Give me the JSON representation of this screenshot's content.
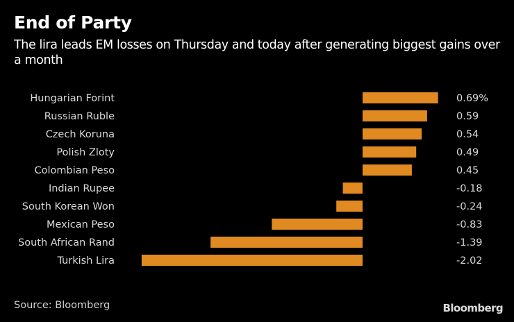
{
  "header": {
    "title": "End of Party",
    "subtitle": "The lira leads EM losses on Thursday and today after generating biggest gains over a month"
  },
  "footer": {
    "source": "Source: Bloomberg",
    "brand": "Bloomberg"
  },
  "chart_data": {
    "type": "bar",
    "orientation": "horizontal",
    "title": "End of Party",
    "subtitle": "The lira leads EM losses on Thursday and today after generating biggest gains over a month",
    "xlabel": "",
    "ylabel": "",
    "unit": "%",
    "categories": [
      "Hungarian Forint",
      "Russian Ruble",
      "Czech Koruna",
      "Polish Zloty",
      "Colombian Peso",
      "Indian Rupee",
      "South Korean Won",
      "Mexican Peso",
      "South African Rand",
      "Turkish Lira"
    ],
    "values": [
      0.69,
      0.59,
      0.54,
      0.49,
      0.45,
      -0.18,
      -0.24,
      -0.83,
      -1.39,
      -2.02
    ],
    "value_labels": [
      "0.69%",
      "0.59",
      "0.54",
      "0.49",
      "0.45",
      "-0.18",
      "-0.24",
      "-0.83",
      "-1.39",
      "-2.02"
    ],
    "xlim": [
      -2.02,
      0.69
    ],
    "grid": false,
    "legend": "none",
    "bar_color": "#e08a21",
    "source": "Source: Bloomberg"
  }
}
